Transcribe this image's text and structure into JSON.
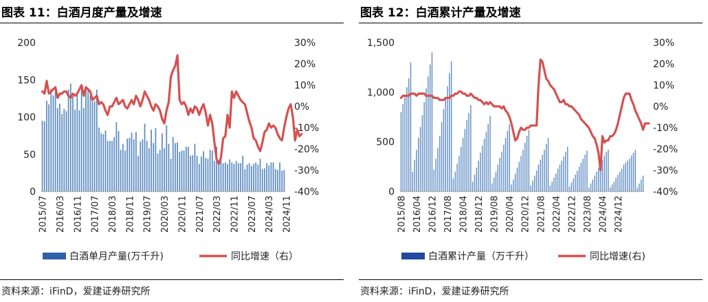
{
  "charts": [
    {
      "title": "图表 11：白酒月度产量及增速",
      "source": "资料来源：iFinD，爱建证券研究所",
      "legend": {
        "bar": "白酒单月产量(万千升)",
        "line": "同比增速（右）"
      }
    },
    {
      "title": "图表 12：白酒累计产量及增速",
      "source": "资料来源：iFinD，爱建证券研究所",
      "legend": {
        "bar": "白酒累计产量（万千升）",
        "line": "同比增速(右)"
      }
    }
  ],
  "colors": {
    "bar_left": "#5b8ac0",
    "bar_right": "#6b95c8",
    "line": "#d55050",
    "text": "#222222",
    "legend_bar_left": "#2f5faa",
    "legend_bar_right": "#1f4aa0"
  },
  "chart_data": [
    {
      "type": "bar+line",
      "title": "图表 11：白酒月度产量及增速",
      "y_left": {
        "min": 0,
        "max": 200,
        "ticks": [
          0,
          50,
          100,
          150,
          200
        ],
        "labels": [
          "0",
          "50",
          "100",
          "150",
          "200"
        ]
      },
      "y_right": {
        "min": -40,
        "max": 30,
        "ticks": [
          -40,
          -30,
          -20,
          -10,
          0,
          10,
          20,
          30
        ],
        "labels": [
          "-40%",
          "-30%",
          "-20%",
          "-10%",
          "0%",
          "10%",
          "20%",
          "30%"
        ]
      },
      "x_tick_labels": [
        "2015/07",
        "2016/03",
        "2016/11",
        "2017/07",
        "2018/03",
        "2018/11",
        "2019/07",
        "2020/03",
        "2020/11",
        "2021/07",
        "2022/03",
        "2022/11",
        "2023/07",
        "2024/03",
        "2024/11"
      ],
      "x_tick_every": 8,
      "series": [
        {
          "name": "白酒单月产量(万千升)",
          "type": "bar",
          "axis": "left",
          "values": [
            95,
            94,
            122,
            117,
            138,
            129,
            135,
            112,
            118,
            104,
            111,
            108,
            137,
            145,
            128,
            110,
            134,
            109,
            141,
            112,
            138,
            139,
            129,
            121,
            121,
            137,
            86,
            78,
            77,
            82,
            68,
            68,
            68,
            73,
            93,
            81,
            56,
            64,
            55,
            71,
            72,
            79,
            70,
            80,
            48,
            67,
            70,
            91,
            68,
            58,
            83,
            65,
            85,
            51,
            56,
            78,
            58,
            89,
            64,
            44,
            73,
            65,
            66,
            53,
            55,
            55,
            60,
            60,
            48,
            49,
            64,
            48,
            37,
            47,
            54,
            45,
            44,
            56,
            55,
            41,
            60,
            42,
            42,
            38,
            39,
            37,
            43,
            39,
            37,
            41,
            38,
            38,
            48,
            30,
            36,
            38,
            34,
            37,
            39,
            36,
            44,
            30,
            31,
            38,
            35,
            39,
            39,
            30,
            29,
            39,
            28,
            29
          ]
        },
        {
          "name": "同比增速（右）",
          "type": "line",
          "axis": "right",
          "values": [
            7,
            6,
            12,
            6,
            7,
            8,
            9,
            4,
            6,
            6,
            7,
            7,
            5,
            4,
            6,
            5,
            6,
            8,
            10,
            5,
            9,
            8,
            7,
            3,
            4,
            5,
            1,
            2,
            1,
            -2,
            -4,
            0,
            0,
            2,
            4,
            1,
            2,
            3,
            0,
            -1,
            1,
            3,
            1,
            5,
            3,
            0,
            3,
            7,
            5,
            3,
            0,
            -2,
            1,
            0,
            -2,
            -6,
            -8,
            -2,
            2,
            14,
            17,
            19,
            24,
            3,
            1,
            2,
            0,
            -4,
            -1,
            -3,
            0,
            -1,
            -4,
            -1,
            1,
            -3,
            -9,
            -4,
            -8,
            -17,
            -25,
            -27,
            -24,
            -15,
            -14,
            -4,
            -10,
            7,
            4,
            7,
            5,
            3,
            2,
            1,
            -3,
            -7,
            -10,
            -15,
            -16,
            -19,
            -21,
            -17,
            -12,
            -11,
            -8,
            -10,
            -9,
            -10,
            -13,
            -15,
            -16,
            -10,
            -5,
            -1,
            1,
            -5,
            -16,
            -11,
            -14,
            -13
          ]
        }
      ]
    },
    {
      "type": "bar+line",
      "title": "图表 12：白酒累计产量及增速",
      "y_left": {
        "min": 0,
        "max": 1500,
        "ticks": [
          0,
          500,
          1000,
          1500
        ],
        "labels": [
          "0",
          "500",
          "1,000",
          "1,500"
        ]
      },
      "y_right": {
        "min": -40,
        "max": 30,
        "ticks": [
          -40,
          -30,
          -20,
          -10,
          0,
          10,
          20,
          30
        ],
        "labels": [
          "-40%",
          "-30%",
          "-20%",
          "-10%",
          "0%",
          "10%",
          "20%",
          "30%"
        ]
      },
      "x_tick_labels": [
        "2015/08",
        "2016/04",
        "2016/12",
        "2017/08",
        "2018/04",
        "2018/12",
        "2019/08",
        "2020/04",
        "2020/12",
        "2021/08",
        "2022/04",
        "2022/12",
        "2023/08",
        "2024/04",
        "2024/12"
      ],
      "x_tick_every": 8,
      "series": [
        {
          "name": "白酒累计产量（万千升）",
          "type": "bar",
          "axis": "left",
          "values": [
            800,
            880,
            960,
            1050,
            1140,
            1300,
            200,
            320,
            420,
            540,
            650,
            770,
            900,
            1040,
            1160,
            1280,
            1400,
            220,
            330,
            440,
            560,
            700,
            830,
            950,
            1060,
            1190,
            1310,
            130,
            200,
            280,
            360,
            450,
            540,
            630,
            720,
            790,
            870,
            100,
            170,
            240,
            310,
            390,
            460,
            530,
            600,
            680,
            760,
            80,
            140,
            200,
            270,
            340,
            400,
            470,
            540,
            610,
            680,
            70,
            120,
            180,
            240,
            300,
            360,
            420,
            490,
            560,
            620,
            60,
            110,
            160,
            210,
            270,
            320,
            370,
            420,
            480,
            540,
            60,
            100,
            140,
            180,
            230,
            270,
            310,
            350,
            400,
            450,
            50,
            90,
            130,
            170,
            210,
            250,
            290,
            330,
            370,
            410,
            40,
            80,
            120,
            160,
            200,
            240,
            280,
            320,
            360,
            400,
            420,
            40,
            70,
            100,
            140,
            170,
            200,
            230,
            270,
            290,
            310,
            330,
            360,
            390,
            420,
            40,
            80,
            120,
            160
          ]
        },
        {
          "name": "同比增速(右)",
          "type": "line",
          "axis": "right",
          "values": [
            4,
            5,
            5,
            5,
            5,
            6,
            6,
            6,
            5,
            6,
            6,
            6,
            6,
            5,
            5,
            5,
            5,
            4,
            4,
            4,
            3,
            3,
            3,
            4,
            4,
            4,
            5,
            5,
            6,
            6,
            7,
            7,
            6,
            6,
            5,
            5,
            6,
            5,
            4,
            4,
            3,
            3,
            2,
            1,
            2,
            1,
            2,
            1,
            0,
            0,
            0,
            0,
            -1,
            0,
            -2,
            -3,
            -5,
            -8,
            -12,
            -16,
            -15,
            -12,
            -10,
            -11,
            -11,
            -10,
            -10,
            -9,
            -9,
            -9,
            -9,
            10,
            22,
            21,
            17,
            13,
            12,
            10,
            9,
            8,
            6,
            4,
            2,
            2,
            3,
            1,
            1,
            0,
            0,
            -1,
            -2,
            -3,
            -4,
            -6,
            -7,
            -8,
            -9,
            -10,
            -12,
            -14,
            -15,
            -18,
            -22,
            -30,
            -14,
            -17,
            -16,
            -16,
            -14,
            -14,
            -13,
            -11,
            -8,
            -4,
            0,
            4,
            6,
            6,
            6,
            3,
            1,
            -2,
            -4,
            -6,
            -8,
            -11,
            -8,
            -8,
            -8
          ]
        }
      ]
    }
  ]
}
